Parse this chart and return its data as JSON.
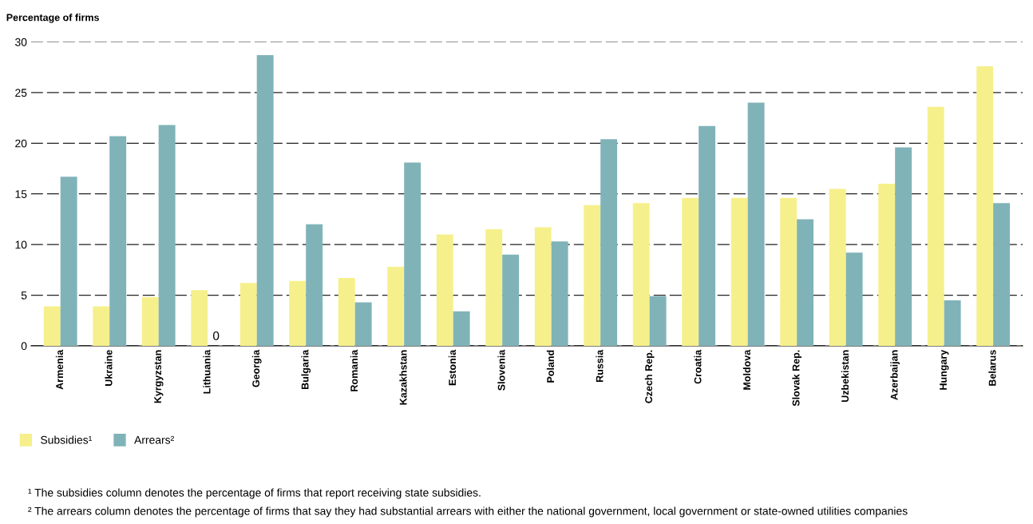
{
  "chart_data": {
    "type": "bar",
    "ylabel": "Percentage of firms",
    "categories": [
      "Armenia",
      "Ukraine",
      "Kyrgyzstan",
      "Lithuania",
      "Georgia",
      "Bulgaria",
      "Romania",
      "Kazakhstan",
      "Estonia",
      "Slovenia",
      "Poland",
      "Russia",
      "Czech Rep.",
      "Croatia",
      "Moldova",
      "Slovak Rep.",
      "Uzbekistan",
      "Azerbaijan",
      "Hungary",
      "Belarus"
    ],
    "series": [
      {
        "name": "Subsidies¹",
        "color": "#f6f08c",
        "values": [
          3.9,
          3.9,
          4.8,
          5.5,
          6.2,
          6.4,
          6.7,
          7.8,
          11.0,
          11.5,
          11.7,
          13.9,
          14.1,
          14.6,
          14.6,
          14.6,
          15.5,
          16.0,
          23.6,
          27.6
        ]
      },
      {
        "name": "Arrears²",
        "color": "#80b3b8",
        "values": [
          16.7,
          20.7,
          21.8,
          0,
          28.7,
          12.0,
          4.3,
          18.1,
          3.4,
          9.0,
          10.3,
          20.4,
          4.9,
          21.7,
          24.0,
          12.5,
          9.2,
          19.6,
          4.5,
          14.1
        ]
      }
    ],
    "ylim": [
      0,
      30
    ],
    "yticks": [
      0,
      5,
      10,
      15,
      20,
      25,
      30
    ],
    "grid": "y",
    "legend": "bottom",
    "annotations": [
      {
        "text": "0",
        "x": "Lithuania",
        "y": 0
      },
      "¹ The subsidies column denotes the percentage of firms that report receiving state subsidies.",
      "² The arrears column denotes the percentage of firms that say they had substantial arrears with either the national government, local government or state-owned utilities companies"
    ]
  }
}
